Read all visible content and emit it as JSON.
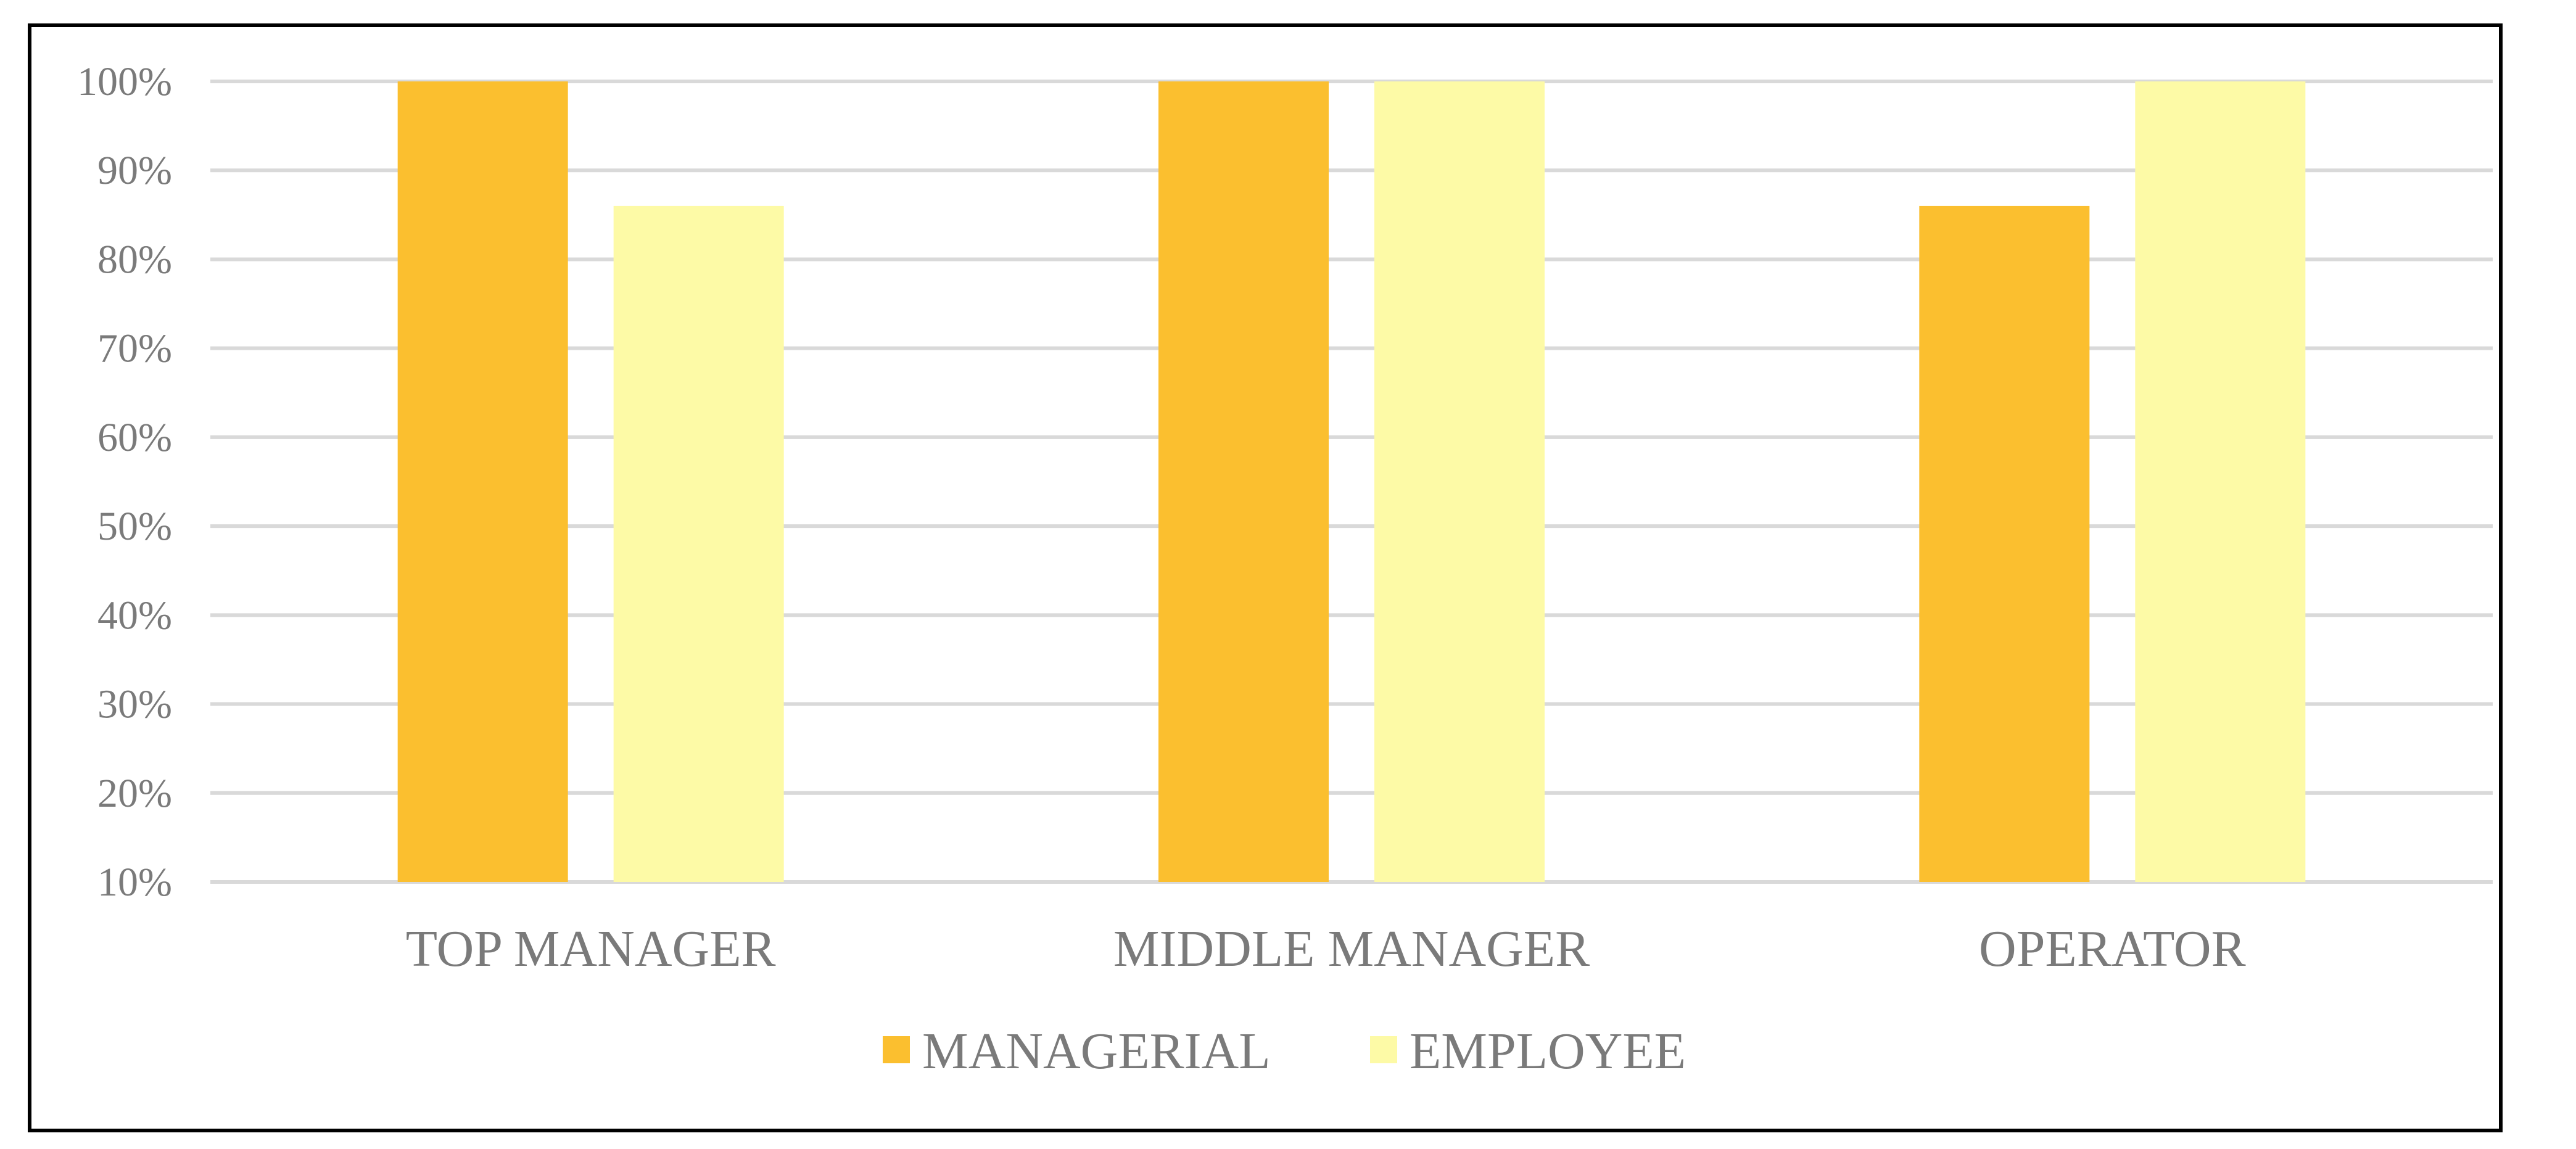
{
  "chart_data": {
    "type": "bar",
    "categories": [
      "TOP MANAGER",
      "MIDDLE MANAGER",
      "OPERATOR"
    ],
    "series": [
      {
        "name": "MANAGERIAL",
        "values": [
          100,
          100,
          86
        ],
        "color": "#fbbf2f"
      },
      {
        "name": "EMPLOYEE",
        "values": [
          86,
          100,
          100
        ],
        "color": "#fdfaa6"
      }
    ],
    "yticks": [
      "10%",
      "20%",
      "30%",
      "40%",
      "50%",
      "60%",
      "70%",
      "80%",
      "90%",
      "100%"
    ],
    "ylim": [
      10,
      100
    ],
    "grid": true,
    "legend_position": "bottom",
    "title": "",
    "xlabel": "",
    "ylabel": ""
  }
}
